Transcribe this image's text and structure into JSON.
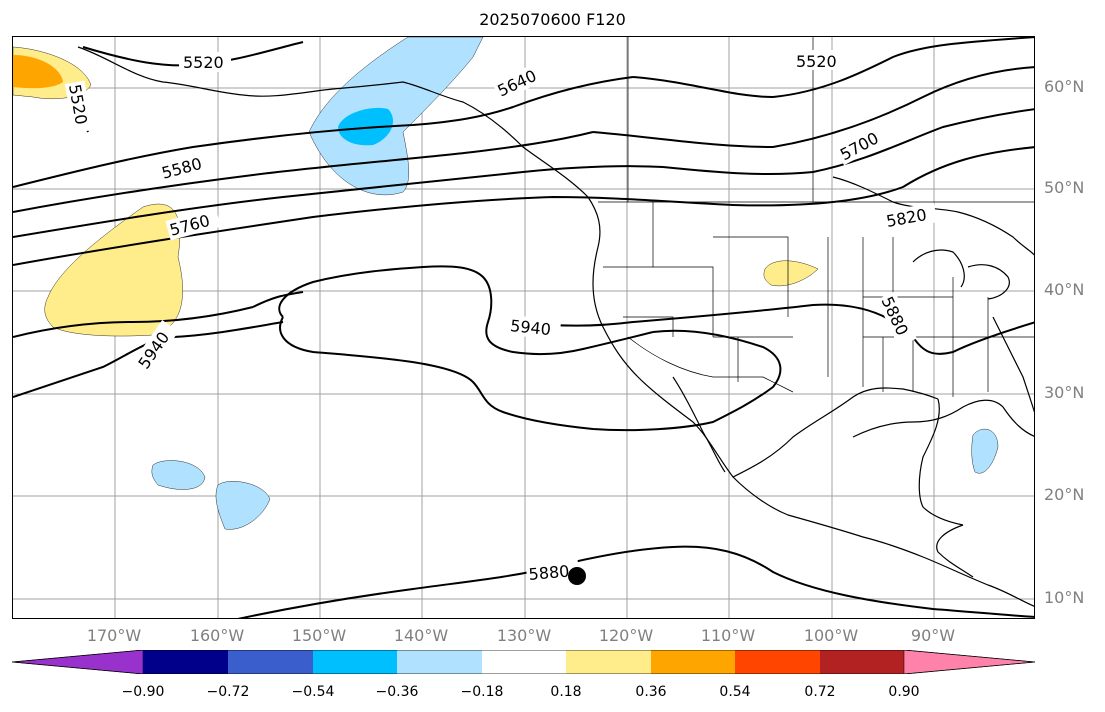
{
  "title": "2025070600 F120",
  "lat_labels": [
    "60°N",
    "50°N",
    "40°N",
    "30°N",
    "20°N",
    "10°N"
  ],
  "lon_labels": [
    "170°W",
    "160°W",
    "150°W",
    "140°W",
    "130°W",
    "120°W",
    "110°W",
    "100°W",
    "90°W"
  ],
  "contour_labels": [
    "5520",
    "5520",
    "5520",
    "5580",
    "5640",
    "5700",
    "5760",
    "5820",
    "5880",
    "5940",
    "5940",
    "5880"
  ],
  "colorbar": {
    "ticks": [
      "−0.90",
      "−0.72",
      "−0.54",
      "−0.36",
      "−0.18",
      "0.18",
      "0.36",
      "0.54",
      "0.72",
      "0.90"
    ],
    "colors": [
      "#9932cc",
      "#00008b",
      "#3a5fcd",
      "#00bfff",
      "#b0e2ff",
      "#ffffff",
      "#ffec8b",
      "#ffa500",
      "#ff4500",
      "#b22222",
      "#ff82ab"
    ]
  },
  "marker": {
    "name": "storm-center-marker",
    "lat": 12.5,
    "lon": -125.3
  },
  "colors": {
    "contour": "#000000",
    "grid": "#a0a0a0",
    "coast": "#000000",
    "label_gray": "#808080"
  }
}
